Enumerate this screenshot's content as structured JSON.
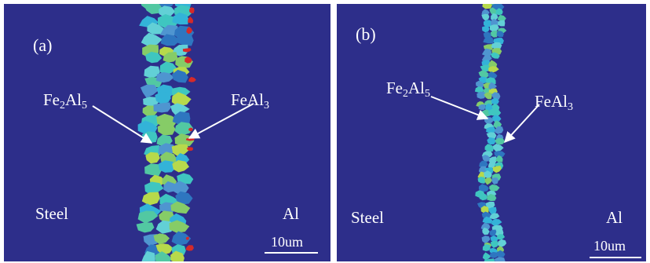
{
  "panels": [
    {
      "label": "(a)",
      "left_region": "Steel",
      "right_region": "Al",
      "phase1": {
        "base": "Fe",
        "sub1": "2",
        "mid": "Al",
        "sub2": "5"
      },
      "phase2": {
        "base": "FeAl",
        "sub1": "3"
      },
      "scale": "10um"
    },
    {
      "label": "(b)",
      "left_region": "Steel",
      "right_region": "Al",
      "phase1": {
        "base": "Fe",
        "sub1": "2",
        "mid": "Al",
        "sub2": "5"
      },
      "phase2": {
        "base": "FeAl",
        "sub1": "3"
      },
      "scale": "10um"
    }
  ],
  "colors": {
    "background": "#2d2e8a",
    "grain_palette": [
      "#33b3d8",
      "#3fc6c0",
      "#52c8a2",
      "#86cc67",
      "#b7d94b",
      "#4f95d0",
      "#2e76c0",
      "#62d0d6"
    ],
    "feal3": "#d42a2a",
    "text": "#ffffff"
  }
}
